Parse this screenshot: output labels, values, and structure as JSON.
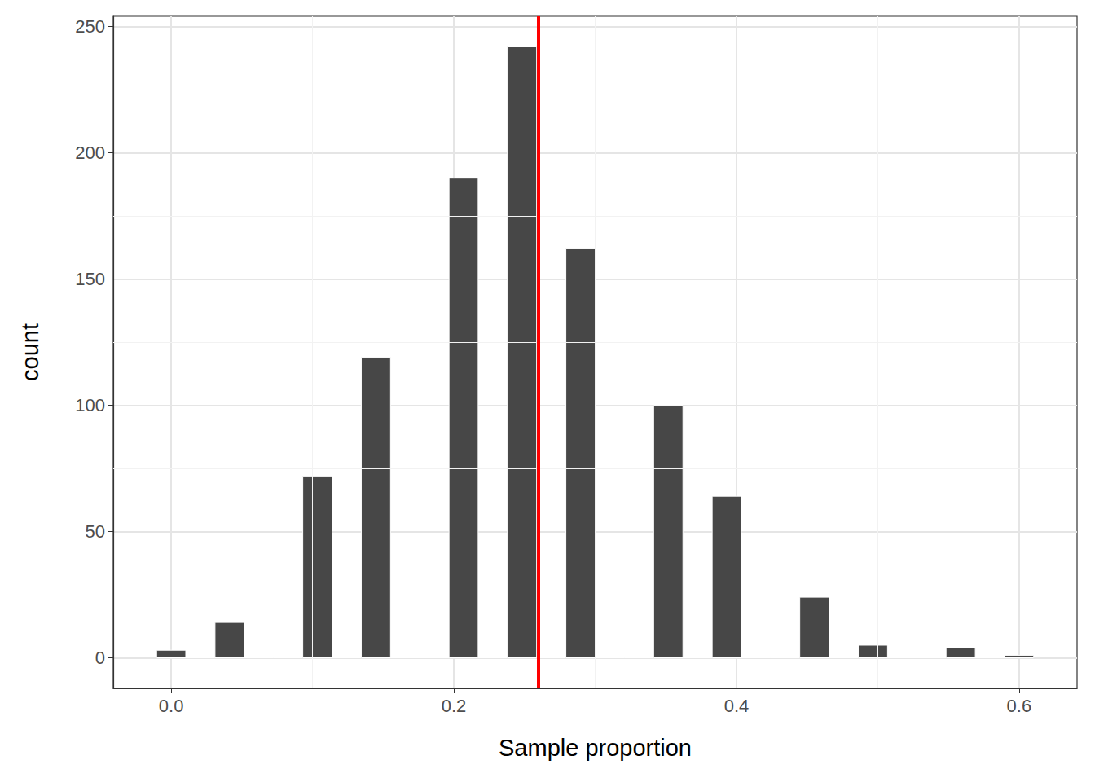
{
  "chart_data": {
    "type": "histogram",
    "x_label": "Sample proportion",
    "y_label": "count",
    "bins": [
      -0.0103,
      0.0103,
      0.031,
      0.0517,
      0.0724,
      0.0931,
      0.1138,
      0.1345,
      0.1552,
      0.1759,
      0.1966,
      0.2172,
      0.2379,
      0.2586,
      0.2793,
      0.3,
      0.3207,
      0.3414,
      0.3621,
      0.3828,
      0.4034,
      0.4241,
      0.4448,
      0.4655,
      0.4862,
      0.5069,
      0.5276,
      0.5483,
      0.569,
      0.5897,
      0.6103
    ],
    "values": [
      3,
      0,
      14,
      0,
      0,
      72,
      0,
      119,
      0,
      0,
      190,
      0,
      242,
      0,
      162,
      0,
      0,
      100,
      0,
      64,
      0,
      0,
      24,
      0,
      5,
      0,
      0,
      4,
      0,
      1
    ],
    "color": "#474747",
    "reference_lines": [
      {
        "x": 0.255,
        "color": "#ff0000"
      }
    ],
    "xlim": [
      -0.041,
      0.641
    ],
    "xticks": [
      {
        "value": 0,
        "label": "0.0"
      },
      0.2,
      0.4,
      0.6
    ],
    "ylim": [
      -12.1,
      254.1
    ],
    "yticks": [
      0,
      50,
      100,
      150,
      200,
      250
    ],
    "grid": true
  }
}
